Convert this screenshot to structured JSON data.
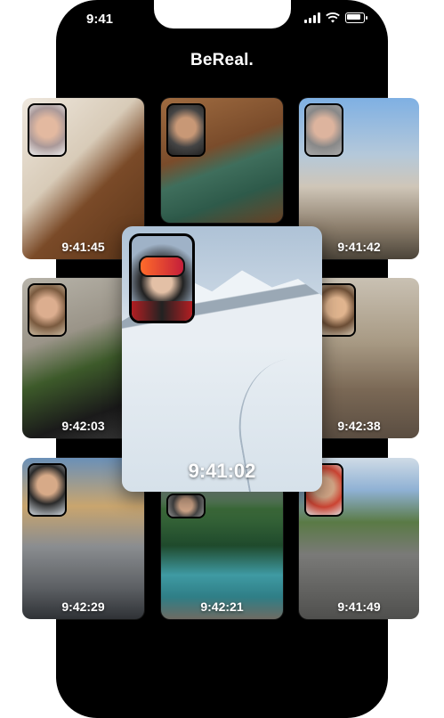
{
  "status_bar": {
    "time": "9:41"
  },
  "app": {
    "title": "BeReal."
  },
  "posts": [
    {
      "id": "p1",
      "time": "9:41:45"
    },
    {
      "id": "p2",
      "time": ""
    },
    {
      "id": "p3",
      "time": "9:41:42"
    },
    {
      "id": "p4",
      "time": "9:42:03"
    },
    {
      "id": "p5",
      "time": "9:42:38"
    },
    {
      "id": "p6",
      "time": "9:42:29"
    },
    {
      "id": "p7",
      "time": "9:42:21"
    },
    {
      "id": "p8",
      "time": "9:41:49"
    },
    {
      "id": "featured",
      "time": "9:41:02"
    }
  ]
}
